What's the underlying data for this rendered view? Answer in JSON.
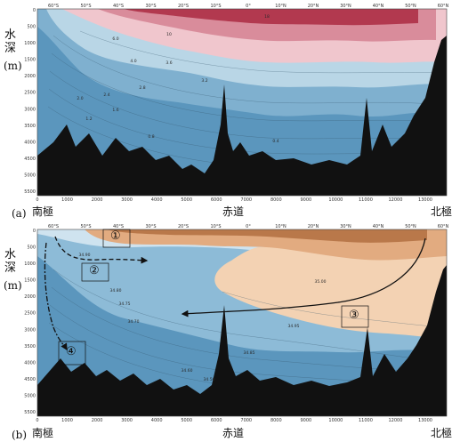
{
  "figure": {
    "y_axis": {
      "label_chars": [
        "水",
        "深"
      ],
      "unit": "(m)",
      "depth_ticks": [
        "0",
        "500",
        "1000",
        "1500",
        "2000",
        "2500",
        "3000",
        "3500",
        "4000",
        "4500",
        "5000",
        "5500"
      ]
    },
    "x_axis": {
      "distance_ticks": [
        "0",
        "1000",
        "2000",
        "3000",
        "4000",
        "5000",
        "6000",
        "7000",
        "8000",
        "9000",
        "10000",
        "11000",
        "12000",
        "13000"
      ],
      "latitude_ticks": [
        "60°S",
        "50°S",
        "40°S",
        "30°S",
        "20°S",
        "10°S",
        "0°",
        "10°N",
        "20°N",
        "30°N",
        "40°N",
        "50°N",
        "60°N"
      ]
    },
    "bottom_labels": {
      "south_pole": "南極",
      "equator": "赤道",
      "north_pole": "北極"
    }
  },
  "panel_a": {
    "letter": "(a)",
    "contour_labels": [
      "18",
      "10",
      "6.0",
      "4.0",
      "3.6",
      "3.2",
      "2.8",
      "2.4",
      "2.0",
      "1.6",
      "1.2",
      "0.8",
      "0.4"
    ]
  },
  "panel_b": {
    "letter": "(b)",
    "contour_labels": [
      "34.90",
      "34.80",
      "34.75",
      "34.70",
      "34.85",
      "34.95",
      "35.00",
      "34.60",
      "34.50"
    ],
    "markers": [
      "①",
      "②",
      "③",
      "④"
    ]
  },
  "colors": {
    "warm_dark": "#b2394f",
    "warm_mid": "#d98c9b",
    "warm_light": "#f0c6cd",
    "cold_light": "#b9d6e6",
    "cold_mid": "#7fb0cf",
    "cold_dark": "#5b96bd",
    "salty_dark": "#b9784a",
    "salty_light": "#f3d2b3",
    "fresh_light": "#cfe3ef",
    "fresh_mid": "#8dbbd7",
    "seafloor": "#111111"
  }
}
